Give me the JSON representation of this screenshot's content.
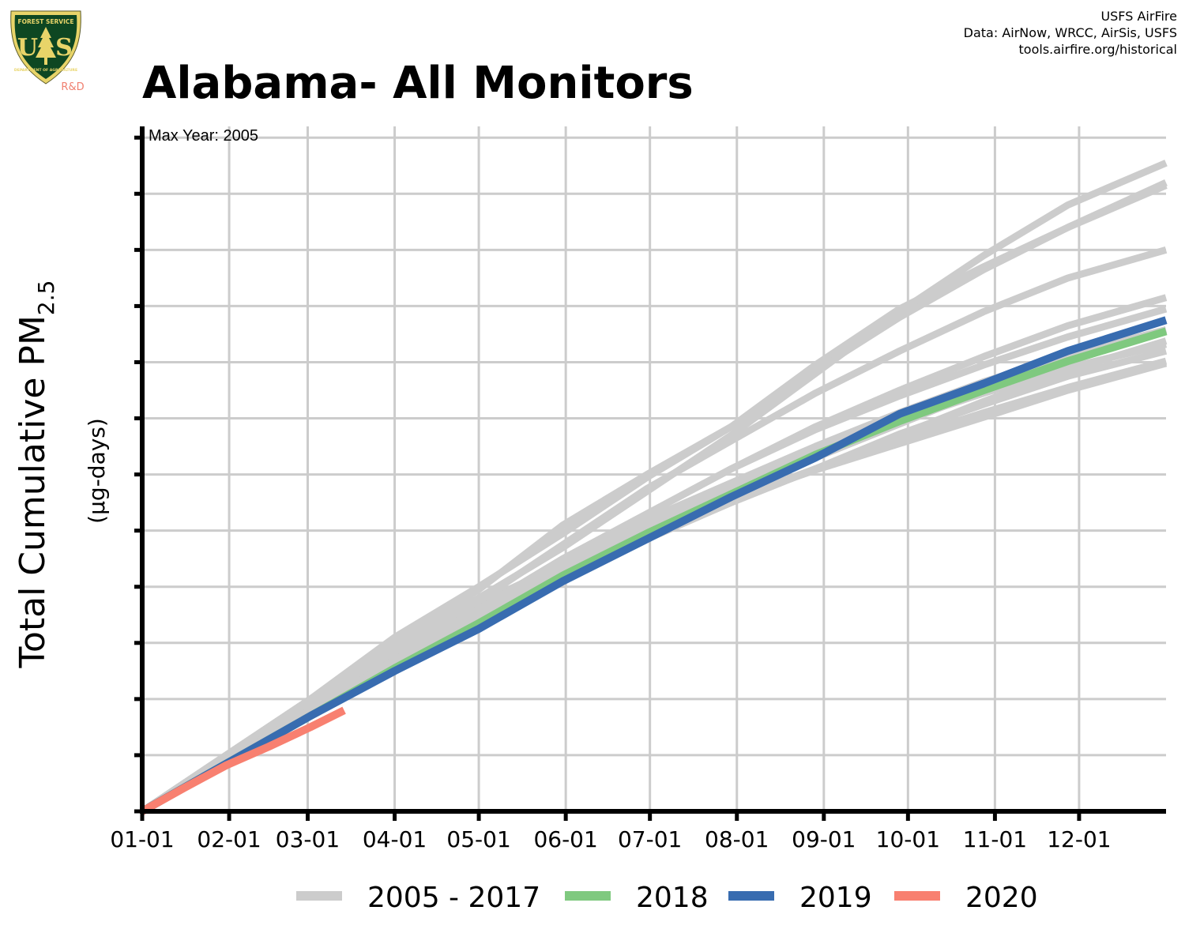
{
  "logo": {
    "top_text": "FOREST SERVICE",
    "left_letter": "U",
    "right_letter": "S",
    "bottom_text": "DEPARTMENT OF AGRICULTURE",
    "badge_text": "R&D",
    "colors": {
      "shield": "#0e4722",
      "trim": "#e8d469",
      "badge": "#f08070"
    }
  },
  "credits": {
    "line1": "USFS AirFire",
    "line2": "Data: AirNow, WRCC, AirSis, USFS",
    "line3": "tools.airfire.org/historical"
  },
  "title": "Alabama- All Monitors",
  "chart_data": {
    "type": "line",
    "ylabel_main": "Total Cumulative PM",
    "ylabel_sub": "2.5",
    "ylabel_units": "(µg-days)",
    "annotation": "Max Year: 2005",
    "x_ticks": [
      "01-01",
      "02-01",
      "03-01",
      "04-01",
      "05-01",
      "06-01",
      "07-01",
      "08-01",
      "09-01",
      "10-01",
      "11-01",
      "12-01"
    ],
    "x_tick_days": [
      0,
      31,
      59,
      90,
      120,
      151,
      181,
      212,
      243,
      273,
      304,
      334
    ],
    "xlim": [
      0,
      365
    ],
    "ylim": [
      0,
      12.2
    ],
    "y_ticks": [
      0,
      1,
      2,
      3,
      4,
      5,
      6,
      7,
      8,
      9,
      10,
      11,
      12
    ],
    "y_tick_labels_shown": false,
    "grid": true,
    "legend_position": "bottom",
    "x": [
      0,
      30,
      60,
      90,
      120,
      150,
      180,
      210,
      240,
      270,
      300,
      330,
      365
    ],
    "series": [
      {
        "name": "2005 - 2017",
        "color": "#cccccc",
        "legend": true,
        "values": [
          0,
          1.0,
          2.0,
          2.9,
          3.7,
          4.4,
          5.0,
          5.55,
          6.1,
          6.62,
          7.1,
          7.55,
          8.02
        ]
      },
      {
        "name": "2005 - 2017",
        "color": "#cccccc",
        "legend": false,
        "values": [
          0,
          1.0,
          2.0,
          2.9,
          3.7,
          4.4,
          5.0,
          5.55,
          6.08,
          6.55,
          7.02,
          7.5,
          7.98
        ]
      },
      {
        "name": "2005 - 2017",
        "color": "#cccccc",
        "legend": false,
        "values": [
          0,
          0.9,
          1.8,
          2.7,
          3.6,
          4.45,
          5.2,
          5.85,
          6.5,
          7.1,
          7.65,
          8.12,
          8.58
        ]
      },
      {
        "name": "2005 - 2017",
        "color": "#cccccc",
        "legend": false,
        "values": [
          0,
          0.9,
          1.75,
          2.6,
          3.4,
          4.15,
          4.85,
          5.5,
          6.1,
          6.7,
          7.3,
          7.85,
          8.38
        ]
      },
      {
        "name": "2005 - 2017",
        "color": "#cccccc",
        "legend": false,
        "values": [
          0,
          0.95,
          1.85,
          2.75,
          3.75,
          4.75,
          5.75,
          6.6,
          7.45,
          8.2,
          8.9,
          9.5,
          10.0
        ]
      },
      {
        "name": "2005 - 2017",
        "color": "#cccccc",
        "legend": false,
        "values": [
          0,
          0.9,
          1.8,
          2.7,
          3.6,
          4.5,
          5.3,
          6.1,
          6.8,
          7.4,
          7.95,
          8.45,
          8.95
        ]
      },
      {
        "name": "2005 - 2017",
        "color": "#cccccc",
        "legend": false,
        "values": [
          0,
          1.0,
          2.0,
          3.0,
          3.95,
          5.1,
          6.0,
          6.85,
          7.85,
          8.8,
          9.65,
          10.4,
          11.2
        ]
      },
      {
        "name": "2005 - 2017",
        "color": "#cccccc",
        "legend": false,
        "values": [
          0,
          1.0,
          2.0,
          3.1,
          4.0,
          4.95,
          5.95,
          6.85,
          7.95,
          8.95,
          9.7,
          10.4,
          11.15
        ]
      },
      {
        "name": "2005 - 2017",
        "color": "#cccccc",
        "legend": false,
        "values": [
          0,
          0.95,
          1.9,
          2.8,
          3.6,
          4.4,
          5.1,
          5.8,
          6.4,
          6.95,
          7.45,
          7.9,
          8.32
        ]
      },
      {
        "name": "2005 - 2017",
        "color": "#cccccc",
        "legend": false,
        "values": [
          0,
          1.0,
          2.0,
          2.95,
          3.8,
          4.7,
          5.7,
          6.7,
          7.8,
          8.9,
          9.9,
          10.8,
          11.55
        ]
      },
      {
        "name": "2005 - 2017",
        "color": "#cccccc",
        "legend": false,
        "values": [
          0,
          0.9,
          1.8,
          2.7,
          3.6,
          4.5,
          5.3,
          6.1,
          6.85,
          7.5,
          8.1,
          8.65,
          9.15
        ]
      },
      {
        "name": "2005 - 2017",
        "color": "#cccccc",
        "legend": false,
        "values": [
          0,
          0.9,
          1.8,
          2.65,
          3.45,
          4.25,
          4.9,
          5.5,
          6.1,
          6.72,
          7.25,
          7.75,
          8.2
        ]
      },
      {
        "name": "2005 - 2017",
        "color": "#cccccc",
        "legend": false,
        "values": [
          0,
          0.9,
          1.8,
          2.7,
          3.5,
          4.3,
          5.0,
          5.7,
          6.3,
          6.9,
          7.5,
          8.05,
          8.55
        ]
      },
      {
        "name": "2018",
        "color": "#7fc97f",
        "legend": true,
        "values": [
          0,
          0.85,
          1.7,
          2.55,
          3.35,
          4.2,
          4.95,
          5.65,
          6.35,
          6.95,
          7.5,
          8.02,
          8.55
        ]
      },
      {
        "name": "2019",
        "color": "#386cb0",
        "legend": true,
        "values": [
          0,
          0.85,
          1.7,
          2.5,
          3.25,
          4.1,
          4.85,
          5.6,
          6.3,
          7.08,
          7.62,
          8.2,
          8.75
        ]
      },
      {
        "name": "2020",
        "color": "#f88070",
        "x": [
          0,
          15,
          30,
          45,
          60,
          72
        ],
        "legend": true,
        "values": [
          0,
          0.42,
          0.82,
          1.15,
          1.5,
          1.8
        ]
      }
    ]
  }
}
